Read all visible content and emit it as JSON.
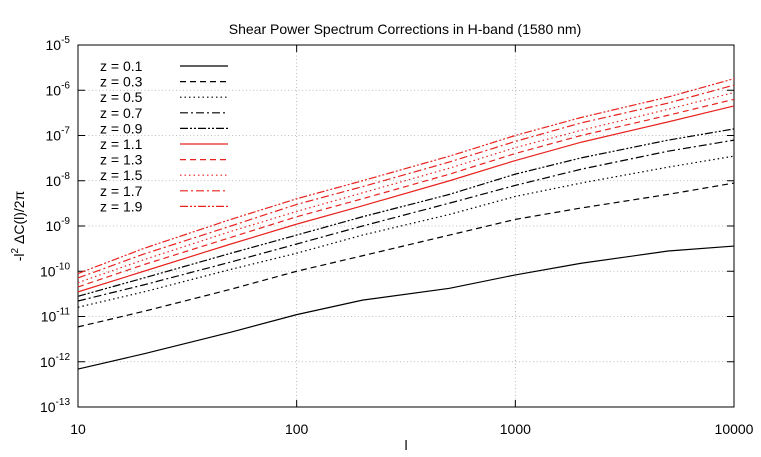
{
  "chart_data": {
    "type": "line",
    "title": "Shear Power Spectrum Corrections in H-band (1580 nm)",
    "x_label": "l",
    "y_label": {
      "text": "-l",
      "exponent": "2",
      "rest": " ΔC(l)/2π"
    },
    "xscale": "log",
    "yscale": "log",
    "grid": true,
    "legend": "upper left",
    "xlim": [
      10,
      10000
    ],
    "xticks": [
      10,
      100,
      1000,
      10000
    ],
    "ylim": [
      1e-13,
      1e-05
    ],
    "yticks": [
      {
        "value": 1e-13,
        "label": "10",
        "exponent": "-13"
      },
      {
        "value": 1e-12,
        "label": "10",
        "exponent": "-12"
      },
      {
        "value": 1e-11,
        "label": "10",
        "exponent": "-11"
      },
      {
        "value": 1e-10,
        "label": "10",
        "exponent": "-10"
      },
      {
        "value": 1e-09,
        "label": "10",
        "exponent": "-9"
      },
      {
        "value": 1e-08,
        "label": "10",
        "exponent": "-8"
      },
      {
        "value": 1e-07,
        "label": "10",
        "exponent": "-7"
      },
      {
        "value": 1e-06,
        "label": "10",
        "exponent": "-6"
      },
      {
        "value": 1e-05,
        "label": "10",
        "exponent": "-5"
      }
    ],
    "x": [
      10,
      20,
      50,
      100,
      200,
      500,
      1000,
      2000,
      5000,
      10000
    ],
    "series": [
      {
        "name": "z = 0.1",
        "color": "#000000",
        "dash": "none",
        "values": [
          6.9e-13,
          1.5e-12,
          4.5e-12,
          1.1e-11,
          2.3e-11,
          4.2e-11,
          8.3e-11,
          1.5e-10,
          2.8e-10,
          3.6e-10
        ]
      },
      {
        "name": "z = 0.3",
        "color": "#000000",
        "dash": "6 4",
        "values": [
          5.9e-12,
          1.3e-11,
          4e-11,
          1e-10,
          2.2e-10,
          6.3e-10,
          1.4e-09,
          2.5e-09,
          5e-09,
          8.9e-09
        ]
      },
      {
        "name": "z = 0.5",
        "color": "#000000",
        "dash": "1.5 3",
        "values": [
          1.6e-11,
          3.5e-11,
          1.1e-10,
          2.5e-10,
          6.3e-10,
          1.8e-09,
          4.5e-09,
          8.9e-09,
          2e-08,
          3.5e-08
        ]
      },
      {
        "name": "z = 0.7",
        "color": "#000000",
        "dash": "8 3 2 3",
        "values": [
          2.2e-11,
          5e-11,
          1.6e-10,
          4e-10,
          1e-09,
          3.2e-09,
          7.9e-09,
          1.8e-08,
          4.5e-08,
          7.9e-08
        ]
      },
      {
        "name": "z = 0.9",
        "color": "#000000",
        "dash": "8 2 2 2 2 2",
        "values": [
          2.8e-11,
          7.1e-11,
          2.5e-10,
          6.3e-10,
          1.6e-09,
          5e-09,
          1.4e-08,
          3.2e-08,
          7.9e-08,
          1.4e-07
        ]
      },
      {
        "name": "z = 1.1",
        "color": "#e8231f",
        "dash": "none",
        "values": [
          3.5e-11,
          1e-10,
          4e-10,
          1.1e-09,
          2.8e-09,
          1e-08,
          2.8e-08,
          7.1e-08,
          2e-07,
          4.5e-07
        ]
      },
      {
        "name": "z = 1.3",
        "color": "#e8231f",
        "dash": "6 4",
        "values": [
          4.5e-11,
          1.4e-10,
          5.6e-10,
          1.6e-09,
          4e-09,
          1.4e-08,
          4e-08,
          1e-07,
          2.8e-07,
          6.3e-07
        ]
      },
      {
        "name": "z = 1.5",
        "color": "#e8231f",
        "dash": "1.5 3",
        "values": [
          5.6e-11,
          1.8e-10,
          7.6e-10,
          2.1e-09,
          5.4e-09,
          1.9e-08,
          5.4e-08,
          1.3e-07,
          3.8e-07,
          8.9e-07
        ]
      },
      {
        "name": "z = 1.7",
        "color": "#e8231f",
        "dash": "8 3 2 3",
        "values": [
          7.1e-11,
          2.4e-10,
          1e-09,
          3e-09,
          7.4e-09,
          2.6e-08,
          7.4e-08,
          1.9e-07,
          5.2e-07,
          1.3e-06
        ]
      },
      {
        "name": "z = 1.9",
        "color": "#e8231f",
        "dash": "8 2 2 2 2 2",
        "values": [
          8.9e-11,
          3.2e-10,
          1.4e-09,
          4e-09,
          1e-08,
          3.5e-08,
          1e-07,
          2.5e-07,
          7.1e-07,
          1.8e-06
        ]
      }
    ]
  }
}
